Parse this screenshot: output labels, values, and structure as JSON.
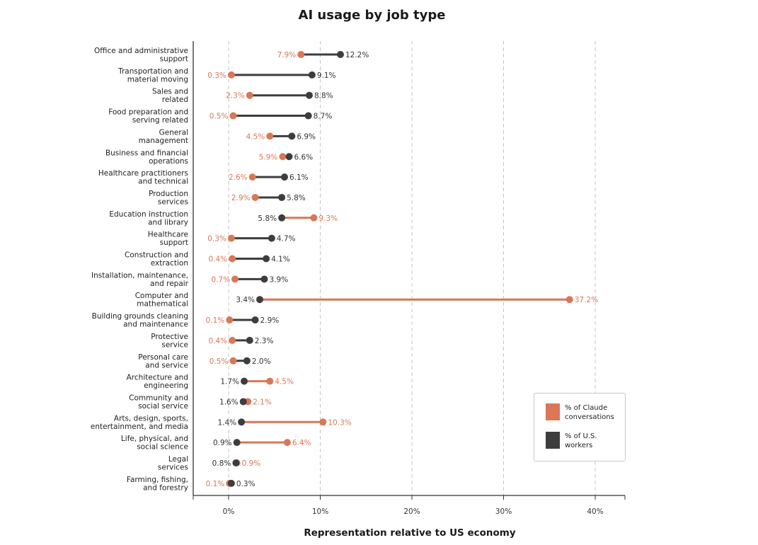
{
  "chart_data": {
    "type": "dumbbell",
    "title": "AI usage by job type",
    "xlabel": "Representation relative to US economy",
    "ylabel": "",
    "xlim": [
      -4,
      43
    ],
    "x_ticks": [
      0,
      10,
      20,
      30,
      40
    ],
    "x_tick_labels": [
      "0%",
      "10%",
      "20%",
      "30%",
      "40%"
    ],
    "grid": "vertical dashed",
    "legend_position": "bottom-right",
    "colors": {
      "claude": "#d97757",
      "workers": "#3d3d3d"
    },
    "series": [
      {
        "name": "% of Claude conversations",
        "key": "claude"
      },
      {
        "name": "% of U.S. workers",
        "key": "workers"
      }
    ],
    "categories": [
      {
        "label": [
          "Office and administrative",
          "support"
        ],
        "claude": 7.9,
        "workers": 12.2,
        "claude_label": "7.9%",
        "workers_label": "12.2%"
      },
      {
        "label": [
          "Transportation and",
          "material moving"
        ],
        "claude": 0.3,
        "workers": 9.1,
        "claude_label": "0.3%",
        "workers_label": "9.1%"
      },
      {
        "label": [
          "Sales and",
          "related"
        ],
        "claude": 2.3,
        "workers": 8.8,
        "claude_label": "2.3%",
        "workers_label": "8.8%"
      },
      {
        "label": [
          "Food preparation and",
          "serving related"
        ],
        "claude": 0.5,
        "workers": 8.7,
        "claude_label": "0.5%",
        "workers_label": "8.7%"
      },
      {
        "label": [
          "General",
          "management"
        ],
        "claude": 4.5,
        "workers": 6.9,
        "claude_label": "4.5%",
        "workers_label": "6.9%"
      },
      {
        "label": [
          "Business and financial",
          "operations"
        ],
        "claude": 5.9,
        "workers": 6.6,
        "claude_label": "5.9%",
        "workers_label": "6.6%"
      },
      {
        "label": [
          "Healthcare practitioners",
          "and technical"
        ],
        "claude": 2.6,
        "workers": 6.1,
        "claude_label": "2.6%",
        "workers_label": "6.1%"
      },
      {
        "label": [
          "Production",
          "services"
        ],
        "claude": 2.9,
        "workers": 5.8,
        "claude_label": "2.9%",
        "workers_label": "5.8%"
      },
      {
        "label": [
          "Education instruction",
          "and library"
        ],
        "claude": 9.3,
        "workers": 5.8,
        "claude_label": "9.3%",
        "workers_label": "5.8%"
      },
      {
        "label": [
          "Healthcare",
          "support"
        ],
        "claude": 0.3,
        "workers": 4.7,
        "claude_label": "0.3%",
        "workers_label": "4.7%"
      },
      {
        "label": [
          "Construction and",
          "extraction"
        ],
        "claude": 0.4,
        "workers": 4.1,
        "claude_label": "0.4%",
        "workers_label": "4.1%"
      },
      {
        "label": [
          "Installation, maintenance,",
          "and repair"
        ],
        "claude": 0.7,
        "workers": 3.9,
        "claude_label": "0.7%",
        "workers_label": "3.9%"
      },
      {
        "label": [
          "Computer and",
          "mathematical"
        ],
        "claude": 37.2,
        "workers": 3.4,
        "claude_label": "37.2%",
        "workers_label": "3.4%"
      },
      {
        "label": [
          "Building grounds cleaning",
          "and maintenance"
        ],
        "claude": 0.1,
        "workers": 2.9,
        "claude_label": "0.1%",
        "workers_label": "2.9%"
      },
      {
        "label": [
          "Protective",
          "service"
        ],
        "claude": 0.4,
        "workers": 2.3,
        "claude_label": "0.4%",
        "workers_label": "2.3%"
      },
      {
        "label": [
          "Personal care",
          "and service"
        ],
        "claude": 0.5,
        "workers": 2.0,
        "claude_label": "0.5%",
        "workers_label": "2.0%"
      },
      {
        "label": [
          "Architecture and",
          "engineering"
        ],
        "claude": 4.5,
        "workers": 1.7,
        "claude_label": "4.5%",
        "workers_label": "1.7%"
      },
      {
        "label": [
          "Community and",
          "social service"
        ],
        "claude": 2.1,
        "workers": 1.6,
        "claude_label": "2.1%",
        "workers_label": "1.6%"
      },
      {
        "label": [
          "Arts, design, sports,",
          "entertainment, and media"
        ],
        "claude": 10.3,
        "workers": 1.4,
        "claude_label": "10.3%",
        "workers_label": "1.4%"
      },
      {
        "label": [
          "Life, physical, and",
          "social science"
        ],
        "claude": 6.4,
        "workers": 0.9,
        "claude_label": "6.4%",
        "workers_label": "0.9%"
      },
      {
        "label": [
          "Legal",
          "services"
        ],
        "claude": 0.9,
        "workers": 0.8,
        "claude_label": "0.9%",
        "workers_label": "0.8%"
      },
      {
        "label": [
          "Farming, fishing,",
          "and forestry"
        ],
        "claude": 0.1,
        "workers": 0.3,
        "claude_label": "0.1%",
        "workers_label": "0.3%"
      }
    ],
    "legend": [
      {
        "label": [
          "% of Claude",
          "conversations"
        ],
        "key": "claude"
      },
      {
        "label": [
          "% of U.S.",
          "workers"
        ],
        "key": "workers"
      }
    ]
  }
}
